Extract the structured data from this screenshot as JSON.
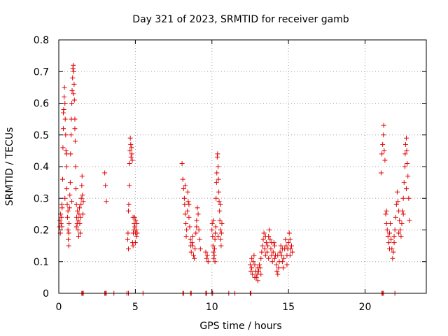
{
  "chart_data": {
    "type": "scatter",
    "title": "Day 321 of 2023, SRMTID for receiver gamb",
    "xlabel": "GPS time / hours",
    "ylabel": "SRMTID / TECUs",
    "xlim": [
      0,
      24
    ],
    "ylim": [
      0,
      0.8
    ],
    "xticks": [
      0,
      5,
      10,
      15,
      20
    ],
    "xtick_labels": [
      "0",
      "5",
      "10",
      "15",
      "20"
    ],
    "yticks": [
      0,
      0.1,
      0.2,
      0.3,
      0.4,
      0.5,
      0.6,
      0.7,
      0.8
    ],
    "ytick_labels": [
      "0",
      "0.1",
      "0.2",
      "0.3",
      "0.4",
      "0.5",
      "0.6",
      "0.7",
      "0.8"
    ],
    "grid": true,
    "marker": "+",
    "color": "#e00000",
    "series": [
      {
        "name": "SRMTID",
        "points": [
          [
            0.05,
            0.21
          ],
          [
            0.08,
            0.23
          ],
          [
            0.1,
            0.19
          ],
          [
            0.12,
            0.25
          ],
          [
            0.15,
            0.22
          ],
          [
            0.18,
            0.24
          ],
          [
            0.2,
            0.21
          ],
          [
            0.22,
            0.27
          ],
          [
            0.25,
            0.36
          ],
          [
            0.27,
            0.46
          ],
          [
            0.3,
            0.52
          ],
          [
            0.32,
            0.58
          ],
          [
            0.35,
            0.62
          ],
          [
            0.37,
            0.65
          ],
          [
            0.4,
            0.6
          ],
          [
            0.42,
            0.55
          ],
          [
            0.45,
            0.5
          ],
          [
            0.47,
            0.45
          ],
          [
            0.5,
            0.4
          ],
          [
            0.52,
            0.33
          ],
          [
            0.55,
            0.28
          ],
          [
            0.57,
            0.24
          ],
          [
            0.6,
            0.2
          ],
          [
            0.62,
            0.17
          ],
          [
            0.65,
            0.15
          ],
          [
            0.67,
            0.22
          ],
          [
            0.7,
            0.27
          ],
          [
            0.72,
            0.31
          ],
          [
            0.75,
            0.35
          ],
          [
            0.77,
            0.44
          ],
          [
            0.8,
            0.5
          ],
          [
            0.82,
            0.55
          ],
          [
            0.85,
            0.6
          ],
          [
            0.87,
            0.64
          ],
          [
            0.9,
            0.68
          ],
          [
            0.92,
            0.71
          ],
          [
            0.95,
            0.72
          ],
          [
            0.97,
            0.7
          ],
          [
            1.0,
            0.66
          ],
          [
            1.02,
            0.61
          ],
          [
            1.05,
            0.55
          ],
          [
            1.07,
            0.48
          ],
          [
            1.1,
            0.4
          ],
          [
            1.12,
            0.33
          ],
          [
            1.15,
            0.28
          ],
          [
            1.17,
            0.24
          ],
          [
            1.2,
            0.22
          ],
          [
            1.22,
            0.26
          ],
          [
            1.25,
            0.2
          ],
          [
            1.27,
            0.23
          ],
          [
            1.3,
            0.18
          ],
          [
            1.32,
            0.25
          ],
          [
            1.35,
            0.27
          ],
          [
            1.37,
            0.22
          ],
          [
            1.4,
            0.19
          ],
          [
            1.42,
            0.24
          ],
          [
            1.45,
            0.28
          ],
          [
            1.47,
            0.3
          ],
          [
            1.5,
            0.34
          ],
          [
            1.52,
            0.37
          ],
          [
            1.55,
            0.31
          ],
          [
            1.57,
            0.25
          ],
          [
            1.6,
            0.29
          ],
          [
            0.3,
            0.57
          ],
          [
            0.5,
            0.44
          ],
          [
            0.65,
            0.19
          ],
          [
            0.95,
            0.63
          ],
          [
            1.05,
            0.52
          ],
          [
            0.2,
            0.28
          ],
          [
            0.4,
            0.3
          ],
          [
            0.6,
            0.26
          ],
          [
            0.85,
            0.29
          ],
          [
            1.15,
            0.21
          ],
          [
            3.0,
            0.38
          ],
          [
            3.05,
            0.34
          ],
          [
            3.1,
            0.29
          ],
          [
            4.5,
            0.17
          ],
          [
            4.52,
            0.19
          ],
          [
            4.55,
            0.26
          ],
          [
            4.57,
            0.28
          ],
          [
            4.6,
            0.34
          ],
          [
            4.62,
            0.41
          ],
          [
            4.65,
            0.45
          ],
          [
            4.67,
            0.49
          ],
          [
            4.7,
            0.47
          ],
          [
            4.72,
            0.43
          ],
          [
            4.75,
            0.46
          ],
          [
            4.77,
            0.44
          ],
          [
            4.8,
            0.42
          ],
          [
            4.82,
            0.16
          ],
          [
            4.85,
            0.15
          ],
          [
            4.87,
            0.19
          ],
          [
            4.9,
            0.2
          ],
          [
            4.92,
            0.22
          ],
          [
            4.95,
            0.24
          ],
          [
            4.97,
            0.21
          ],
          [
            5.0,
            0.19
          ],
          [
            5.02,
            0.23
          ],
          [
            5.05,
            0.2
          ],
          [
            5.07,
            0.18
          ],
          [
            5.1,
            0.22
          ],
          [
            5.12,
            0.19
          ],
          [
            4.55,
            0.14
          ],
          [
            4.85,
            0.24
          ],
          [
            5.0,
            0.16
          ],
          [
            8.05,
            0.41
          ],
          [
            8.1,
            0.36
          ],
          [
            8.15,
            0.33
          ],
          [
            8.2,
            0.3
          ],
          [
            8.22,
            0.28
          ],
          [
            8.25,
            0.25
          ],
          [
            8.3,
            0.22
          ],
          [
            8.32,
            0.18
          ],
          [
            8.35,
            0.2
          ],
          [
            8.4,
            0.26
          ],
          [
            8.42,
            0.32
          ],
          [
            8.45,
            0.29
          ],
          [
            8.5,
            0.24
          ],
          [
            8.55,
            0.21
          ],
          [
            8.6,
            0.17
          ],
          [
            8.62,
            0.15
          ],
          [
            8.65,
            0.13
          ],
          [
            8.7,
            0.16
          ],
          [
            8.75,
            0.18
          ],
          [
            8.8,
            0.12
          ],
          [
            8.85,
            0.11
          ],
          [
            8.9,
            0.14
          ],
          [
            8.95,
            0.19
          ],
          [
            9.0,
            0.23
          ],
          [
            9.05,
            0.27
          ],
          [
            9.1,
            0.25
          ],
          [
            9.15,
            0.2
          ],
          [
            9.2,
            0.17
          ],
          [
            9.25,
            0.14
          ],
          [
            8.25,
            0.34
          ],
          [
            8.5,
            0.28
          ],
          [
            8.75,
            0.15
          ],
          [
            9.0,
            0.21
          ],
          [
            9.6,
            0.13
          ],
          [
            9.65,
            0.11
          ],
          [
            9.7,
            0.12
          ],
          [
            9.75,
            0.1
          ],
          [
            10.0,
            0.2
          ],
          [
            10.02,
            0.22
          ],
          [
            10.05,
            0.18
          ],
          [
            10.07,
            0.15
          ],
          [
            10.1,
            0.13
          ],
          [
            10.12,
            0.11
          ],
          [
            10.15,
            0.12
          ],
          [
            10.17,
            0.14
          ],
          [
            10.2,
            0.17
          ],
          [
            10.22,
            0.19
          ],
          [
            10.25,
            0.21
          ],
          [
            10.27,
            0.3
          ],
          [
            10.3,
            0.35
          ],
          [
            10.32,
            0.38
          ],
          [
            10.35,
            0.43
          ],
          [
            10.37,
            0.44
          ],
          [
            10.4,
            0.4
          ],
          [
            10.42,
            0.36
          ],
          [
            10.45,
            0.32
          ],
          [
            10.47,
            0.29
          ],
          [
            10.5,
            0.26
          ],
          [
            10.52,
            0.23
          ],
          [
            10.55,
            0.2
          ],
          [
            10.57,
            0.17
          ],
          [
            10.6,
            0.15
          ],
          [
            10.62,
            0.19
          ],
          [
            10.65,
            0.22
          ],
          [
            10.1,
            0.23
          ],
          [
            10.2,
            0.1
          ],
          [
            10.4,
            0.18
          ],
          [
            10.55,
            0.28
          ],
          [
            12.5,
            0.09
          ],
          [
            12.55,
            0.07
          ],
          [
            12.6,
            0.08
          ],
          [
            12.65,
            0.06
          ],
          [
            12.7,
            0.1
          ],
          [
            12.75,
            0.12
          ],
          [
            12.8,
            0.09
          ],
          [
            12.85,
            0.07
          ],
          [
            12.9,
            0.05
          ],
          [
            12.95,
            0.06
          ],
          [
            13.0,
            0.04
          ],
          [
            13.05,
            0.07
          ],
          [
            13.1,
            0.09
          ],
          [
            13.15,
            0.08
          ],
          [
            13.2,
            0.11
          ],
          [
            13.25,
            0.13
          ],
          [
            13.3,
            0.15
          ],
          [
            13.35,
            0.17
          ],
          [
            13.4,
            0.19
          ],
          [
            13.45,
            0.14
          ],
          [
            13.5,
            0.12
          ],
          [
            13.55,
            0.16
          ],
          [
            13.6,
            0.13
          ],
          [
            13.65,
            0.15
          ],
          [
            13.7,
            0.18
          ],
          [
            13.75,
            0.2
          ],
          [
            13.8,
            0.17
          ],
          [
            13.85,
            0.14
          ],
          [
            13.9,
            0.12
          ],
          [
            13.95,
            0.1
          ],
          [
            14.0,
            0.13
          ],
          [
            14.05,
            0.16
          ],
          [
            14.1,
            0.15
          ],
          [
            14.15,
            0.12
          ],
          [
            14.2,
            0.09
          ],
          [
            14.25,
            0.07
          ],
          [
            14.3,
            0.06
          ],
          [
            14.35,
            0.08
          ],
          [
            14.4,
            0.1
          ],
          [
            14.45,
            0.13
          ],
          [
            14.5,
            0.15
          ],
          [
            14.55,
            0.12
          ],
          [
            14.6,
            0.1
          ],
          [
            14.65,
            0.08
          ],
          [
            14.7,
            0.11
          ],
          [
            14.75,
            0.14
          ],
          [
            14.8,
            0.17
          ],
          [
            14.85,
            0.15
          ],
          [
            14.9,
            0.12
          ],
          [
            14.95,
            0.14
          ],
          [
            15.0,
            0.16
          ],
          [
            15.05,
            0.19
          ],
          [
            15.1,
            0.17
          ],
          [
            15.15,
            0.14
          ],
          [
            15.2,
            0.15
          ],
          [
            15.25,
            0.13
          ],
          [
            12.6,
            0.11
          ],
          [
            12.8,
            0.05
          ],
          [
            13.0,
            0.08
          ],
          [
            13.2,
            0.06
          ],
          [
            13.5,
            0.18
          ],
          [
            13.7,
            0.11
          ],
          [
            13.9,
            0.16
          ],
          [
            14.1,
            0.11
          ],
          [
            14.3,
            0.12
          ],
          [
            14.6,
            0.14
          ],
          [
            14.9,
            0.09
          ],
          [
            15.1,
            0.12
          ],
          [
            21.05,
            0.38
          ],
          [
            21.1,
            0.44
          ],
          [
            21.15,
            0.47
          ],
          [
            21.2,
            0.5
          ],
          [
            21.22,
            0.53
          ],
          [
            21.25,
            0.45
          ],
          [
            21.3,
            0.42
          ],
          [
            21.35,
            0.25
          ],
          [
            21.4,
            0.22
          ],
          [
            21.45,
            0.2
          ],
          [
            21.5,
            0.18
          ],
          [
            21.55,
            0.16
          ],
          [
            21.6,
            0.19
          ],
          [
            21.65,
            0.22
          ],
          [
            21.7,
            0.17
          ],
          [
            21.75,
            0.14
          ],
          [
            21.8,
            0.11
          ],
          [
            21.85,
            0.13
          ],
          [
            21.9,
            0.16
          ],
          [
            21.95,
            0.2
          ],
          [
            22.0,
            0.24
          ],
          [
            22.05,
            0.28
          ],
          [
            22.1,
            0.32
          ],
          [
            22.15,
            0.29
          ],
          [
            22.2,
            0.26
          ],
          [
            22.25,
            0.23
          ],
          [
            22.3,
            0.2
          ],
          [
            22.35,
            0.18
          ],
          [
            22.4,
            0.22
          ],
          [
            22.45,
            0.26
          ],
          [
            22.5,
            0.3
          ],
          [
            22.55,
            0.35
          ],
          [
            22.6,
            0.4
          ],
          [
            22.62,
            0.44
          ],
          [
            22.65,
            0.47
          ],
          [
            22.7,
            0.49
          ],
          [
            22.72,
            0.45
          ],
          [
            22.75,
            0.41
          ],
          [
            22.8,
            0.37
          ],
          [
            22.85,
            0.3
          ],
          [
            22.9,
            0.23
          ],
          [
            21.4,
            0.26
          ],
          [
            21.6,
            0.14
          ],
          [
            21.9,
            0.18
          ],
          [
            22.2,
            0.19
          ],
          [
            22.5,
            0.25
          ],
          [
            22.7,
            0.33
          ],
          [
            1.5,
            0
          ],
          [
            1.55,
            0
          ],
          [
            1.6,
            0
          ],
          [
            3.0,
            0
          ],
          [
            3.05,
            0
          ],
          [
            3.1,
            0
          ],
          [
            3.6,
            0
          ],
          [
            4.45,
            0
          ],
          [
            4.55,
            0
          ],
          [
            5.5,
            0
          ],
          [
            8.1,
            0
          ],
          [
            8.15,
            0
          ],
          [
            8.6,
            0
          ],
          [
            8.65,
            0
          ],
          [
            9.6,
            0
          ],
          [
            9.65,
            0
          ],
          [
            10.0,
            0
          ],
          [
            10.05,
            0
          ],
          [
            11.1,
            0
          ],
          [
            11.5,
            0
          ],
          [
            12.5,
            0
          ],
          [
            12.55,
            0
          ],
          [
            21.1,
            0
          ],
          [
            21.15,
            0
          ],
          [
            21.2,
            0
          ],
          [
            21.95,
            0
          ]
        ]
      }
    ]
  }
}
